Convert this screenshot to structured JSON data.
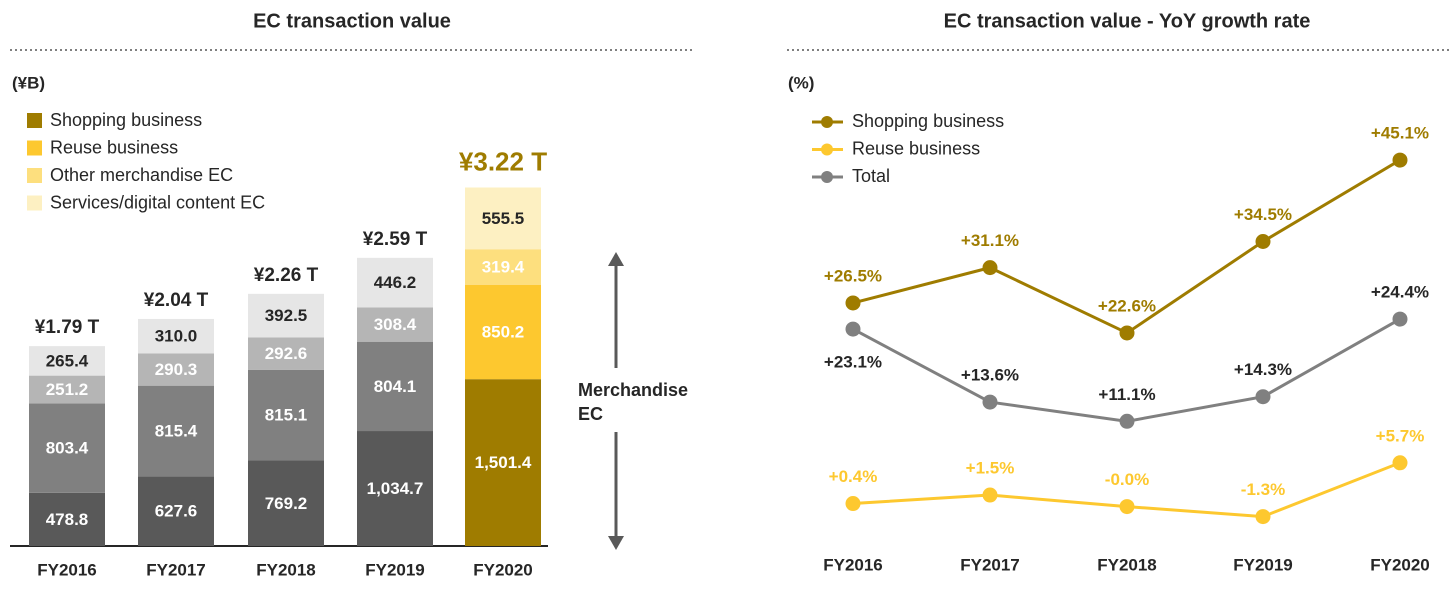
{
  "chart_data": [
    {
      "type": "stacked_bar",
      "title": "EC transaction value",
      "unit_label": "(¥B)",
      "categories": [
        "FY2016",
        "FY2017",
        "FY2018",
        "FY2019",
        "FY2020"
      ],
      "series": [
        {
          "name": "Shopping business",
          "color": "#9f7c00",
          "colors": [
            "#595959",
            "#595959",
            "#595959",
            "#595959",
            "#9f7c00"
          ],
          "values": [
            478.8,
            627.6,
            769.2,
            1034.7,
            1501.4
          ],
          "value_labels": [
            "478.8",
            "627.6",
            "769.2",
            "1,034.7",
            "1,501.4"
          ]
        },
        {
          "name": "Reuse business",
          "color": "#fdc82f",
          "colors": [
            "#808080",
            "#808080",
            "#808080",
            "#808080",
            "#fdc82f"
          ],
          "values": [
            803.4,
            815.4,
            815.1,
            804.1,
            850.2
          ]
        },
        {
          "name": "Other merchandise EC",
          "color": "#fddf7e",
          "colors": [
            "#b5b5b5",
            "#b5b5b5",
            "#b5b5b5",
            "#b5b5b5",
            "#fddf7e"
          ],
          "values": [
            251.2,
            290.3,
            292.6,
            308.4,
            319.4
          ]
        },
        {
          "name": "Services/digital content EC",
          "color": "#fdf0c2",
          "colors": [
            "#e6e6e6",
            "#e6e6e6",
            "#e6e6e6",
            "#e6e6e6",
            "#fdf0c2"
          ],
          "values": [
            265.4,
            310.0,
            392.5,
            446.2,
            555.5
          ],
          "value_labels": [
            "265.4",
            "310.0",
            "392.5",
            "446.2",
            "555.5"
          ]
        }
      ],
      "totals": {
        "values": [
          1790,
          2040,
          2260,
          2590,
          3220
        ],
        "value_labels": [
          "¥1.79 T",
          "¥2.04 T",
          "¥2.26 T",
          "¥2.59 T",
          "¥3.22 T"
        ],
        "colors": [
          "#262626",
          "#262626",
          "#262626",
          "#262626",
          "#9f7c00"
        ]
      },
      "annotation": "Merchandise EC",
      "ylim": [
        0,
        3600
      ]
    },
    {
      "type": "line",
      "title": "EC transaction value - YoY growth rate",
      "unit_label": "(%)",
      "categories": [
        "FY2016",
        "FY2017",
        "FY2018",
        "FY2019",
        "FY2020"
      ],
      "series": [
        {
          "name": "Shopping business",
          "color": "#9f7c00",
          "values": [
            26.5,
            31.1,
            22.6,
            34.5,
            45.1
          ],
          "value_labels": [
            "+26.5%",
            "+31.1%",
            "+22.6%",
            "+34.5%",
            "+45.1%"
          ]
        },
        {
          "name": "Reuse business",
          "color": "#fdc82f",
          "values": [
            0.4,
            1.5,
            -0.0,
            -1.3,
            5.7
          ],
          "value_labels": [
            "+0.4%",
            "+1.5%",
            "-0.0%",
            "-1.3%",
            "+5.7%"
          ]
        },
        {
          "name": "Total",
          "color": "#808080",
          "values": [
            23.1,
            13.6,
            11.1,
            14.3,
            24.4
          ],
          "value_labels": [
            "+23.1%",
            "+13.6%",
            "+11.1%",
            "+14.3%",
            "+24.4%"
          ]
        }
      ],
      "ylim": [
        -5,
        55
      ]
    }
  ]
}
